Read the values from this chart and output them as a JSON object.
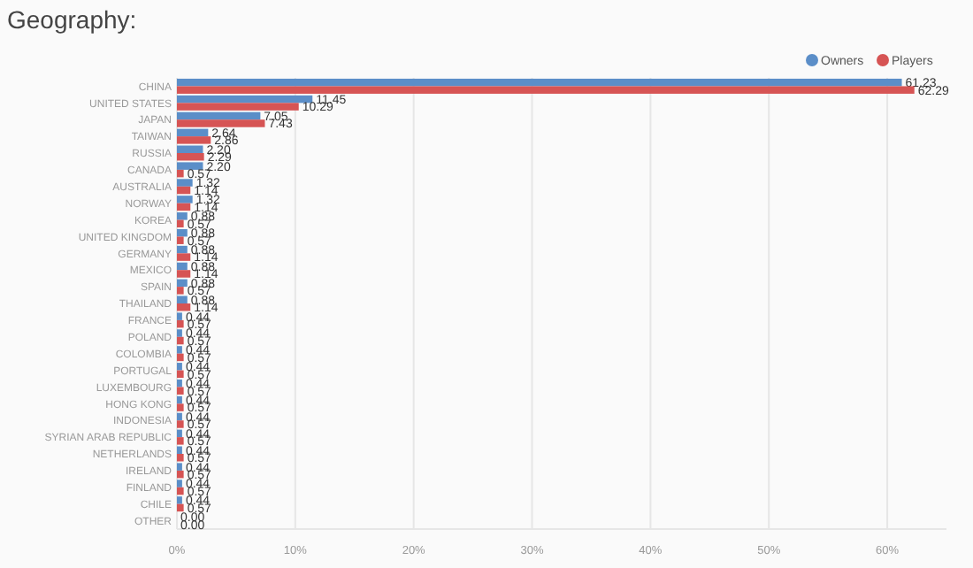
{
  "chart_data": {
    "type": "bar",
    "orientation": "horizontal",
    "title": "Geography:",
    "categories": [
      "CHINA",
      "UNITED STATES",
      "JAPAN",
      "TAIWAN",
      "RUSSIA",
      "CANADA",
      "AUSTRALIA",
      "NORWAY",
      "KOREA",
      "UNITED KINGDOM",
      "GERMANY",
      "MEXICO",
      "SPAIN",
      "THAILAND",
      "FRANCE",
      "POLAND",
      "COLOMBIA",
      "PORTUGAL",
      "LUXEMBOURG",
      "HONG KONG",
      "INDONESIA",
      "SYRIAN ARAB REPUBLIC",
      "NETHERLANDS",
      "IRELAND",
      "FINLAND",
      "CHILE",
      "OTHER"
    ],
    "series": [
      {
        "name": "Owners",
        "color": "#5b8ec8",
        "values": [
          61.23,
          11.45,
          7.05,
          2.64,
          2.2,
          2.2,
          1.32,
          1.32,
          0.88,
          0.88,
          0.88,
          0.88,
          0.88,
          0.88,
          0.44,
          0.44,
          0.44,
          0.44,
          0.44,
          0.44,
          0.44,
          0.44,
          0.44,
          0.44,
          0.44,
          0.44,
          0.0
        ],
        "value_labels": [
          "61.23",
          "11.45",
          "7.05",
          "2.64",
          "2.20",
          "2.20",
          "1.32",
          "1.32",
          "0.88",
          "0.88",
          "0.88",
          "0.88",
          "0.88",
          "0.88",
          "0.44",
          "0.44",
          "0.44",
          "0.44",
          "0.44",
          "0.44",
          "0.44",
          "0.44",
          "0.44",
          "0.44",
          "0.44",
          "0.44",
          "0.00"
        ]
      },
      {
        "name": "Players",
        "color": "#d65454",
        "values": [
          62.29,
          10.29,
          7.43,
          2.86,
          2.29,
          0.57,
          1.14,
          1.14,
          0.57,
          0.57,
          1.14,
          1.14,
          0.57,
          1.14,
          0.57,
          0.57,
          0.57,
          0.57,
          0.57,
          0.57,
          0.57,
          0.57,
          0.57,
          0.57,
          0.57,
          0.57,
          0.0
        ],
        "value_labels": [
          "62.29",
          "10.29",
          "7.43",
          "2.86",
          "2.29",
          "0.57",
          "1.14",
          "1.14",
          "0.57",
          "0.57",
          "1.14",
          "1.14",
          "0.57",
          "1.14",
          "0.57",
          "0.57",
          "0.57",
          "0.57",
          "0.57",
          "0.57",
          "0.57",
          "0.57",
          "0.57",
          "0.57",
          "0.57",
          "0.57",
          "0.00"
        ]
      }
    ],
    "xlim": [
      0,
      65
    ],
    "xticks": [
      {
        "value": 0,
        "label": "0%"
      },
      {
        "value": 10,
        "label": "10%"
      },
      {
        "value": 20,
        "label": "20%"
      },
      {
        "value": 30,
        "label": "30%"
      },
      {
        "value": 40,
        "label": "40%"
      },
      {
        "value": 50,
        "label": "50%"
      },
      {
        "value": 60,
        "label": "60%"
      }
    ],
    "grid": "x",
    "legend": "top right"
  }
}
